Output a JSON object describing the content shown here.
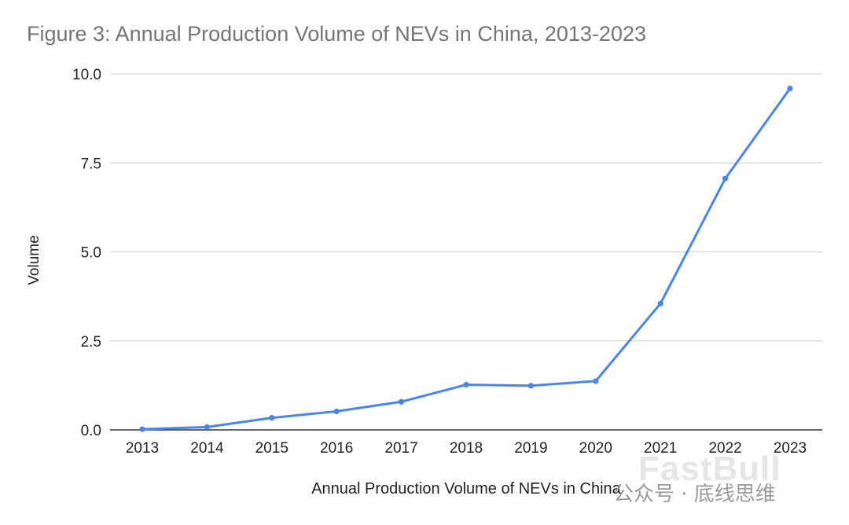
{
  "chart_data": {
    "type": "line",
    "title": "Figure 3: Annual Production Volume of NEVs in China, 2013-2023",
    "xlabel": "Annual Production Volume of NEVs in China",
    "ylabel": "Volume",
    "x": [
      "2013",
      "2014",
      "2015",
      "2016",
      "2017",
      "2018",
      "2019",
      "2020",
      "2021",
      "2022",
      "2023"
    ],
    "series": [
      {
        "name": "Annual Production Volume of NEVs in China",
        "values": [
          0.02,
          0.08,
          0.34,
          0.52,
          0.79,
          1.27,
          1.24,
          1.37,
          3.55,
          7.06,
          9.59
        ],
        "color": "#4a86e8"
      }
    ],
    "ylim": [
      0,
      10
    ],
    "yticks": [
      "0.0",
      "2.5",
      "5.0",
      "7.5",
      "10.0"
    ],
    "grid": true,
    "legend": "none"
  },
  "watermark": {
    "text": "公众号 · 底线思维",
    "ghost_text": "FastBull"
  }
}
